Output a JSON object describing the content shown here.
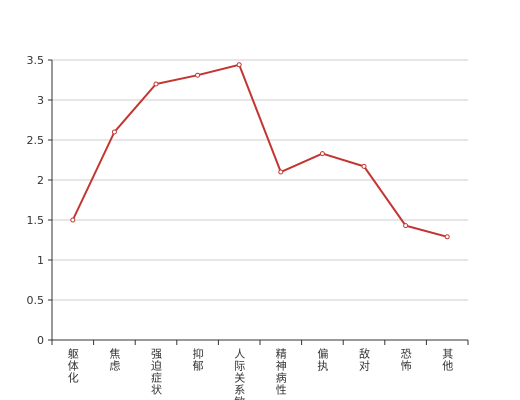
{
  "chart_data": {
    "type": "line",
    "categories": [
      "躯体化",
      "焦虑",
      "强迫症状",
      "抑郁",
      "人际关系敏感",
      "精神病性",
      "偏执",
      "敌对",
      "恐怖",
      "其他"
    ],
    "values": [
      1.5,
      2.6,
      3.2,
      3.31,
      3.44,
      2.1,
      2.33,
      2.17,
      1.43,
      1.29
    ],
    "color": "#c23531",
    "ylim": [
      0,
      3.5
    ],
    "yticks": [
      0,
      0.5,
      1,
      1.5,
      2,
      2.5,
      3,
      3.5
    ],
    "grid": true
  }
}
